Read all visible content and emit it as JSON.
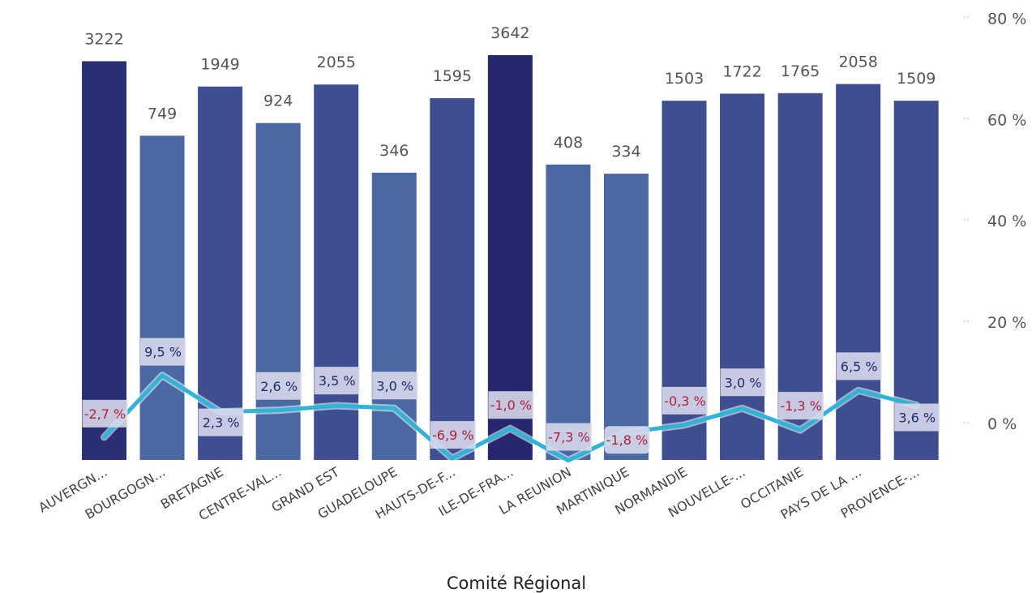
{
  "chart_data": {
    "type": "bar",
    "xlabel": "Comité Régional",
    "categories": [
      "AUVERGN...",
      "BOURGOGN...",
      "BRETAGNE",
      "CENTRE-VAL...",
      "GRAND EST",
      "GUADELOUPE",
      "HAUTS-DE-F...",
      "ILE-DE-FRA...",
      "LA REUNION",
      "MARTINIQUE",
      "NORMANDIE",
      "NOUVELLE-...",
      "OCCITANIE",
      "PAYS DE LA ...",
      "PROVENCE-..."
    ],
    "bar_labels": [
      "3222",
      "749",
      "1949",
      "924",
      "2055",
      "346",
      "1595",
      "3642",
      "408",
      "334",
      "1503",
      "1722",
      "1765",
      "2058",
      "1509"
    ],
    "bar_heights_pct": [
      71.5,
      56.8,
      66.5,
      59.3,
      66.9,
      49.5,
      64.2,
      72.7,
      51.1,
      49.3,
      63.7,
      65.1,
      65.2,
      67.0,
      63.7
    ],
    "bar_colors": [
      "#2a2f75",
      "#4a68a3",
      "#3e4e91",
      "#4a68a3",
      "#3e4e91",
      "#4a68a3",
      "#3e4e91",
      "#25286e",
      "#4a68a3",
      "#4a68a3",
      "#3e4e91",
      "#3e4e91",
      "#3e4e91",
      "#3e4e91",
      "#3e4e91"
    ],
    "line_values": [
      -2.7,
      9.5,
      2.3,
      2.6,
      3.5,
      3.0,
      -6.9,
      -1.0,
      -7.3,
      -1.8,
      -0.3,
      3.0,
      -1.3,
      6.5,
      3.6
    ],
    "line_labels": [
      "-2,7 %",
      "9,5 %",
      "2,3 %",
      "2,6 %",
      "3,5 %",
      "3,0 %",
      "-6,9 %",
      "-1,0 %",
      "-7,3 %",
      "-1,8 %",
      "-0,3 %",
      "3,0 %",
      "-1,3 %",
      "6,5 %",
      "3,6 %"
    ],
    "y2_ticks": [
      "0 %",
      "20 %",
      "40 %",
      "60 %",
      "80 %"
    ],
    "y2_tick_values": [
      0,
      20,
      40,
      60,
      80
    ],
    "ylim": [
      -7.2,
      80
    ],
    "line_color": "#2fb3d6",
    "positive_label_color": "#1e2b6e",
    "negative_label_color": "#b0203a",
    "grid": false
  }
}
